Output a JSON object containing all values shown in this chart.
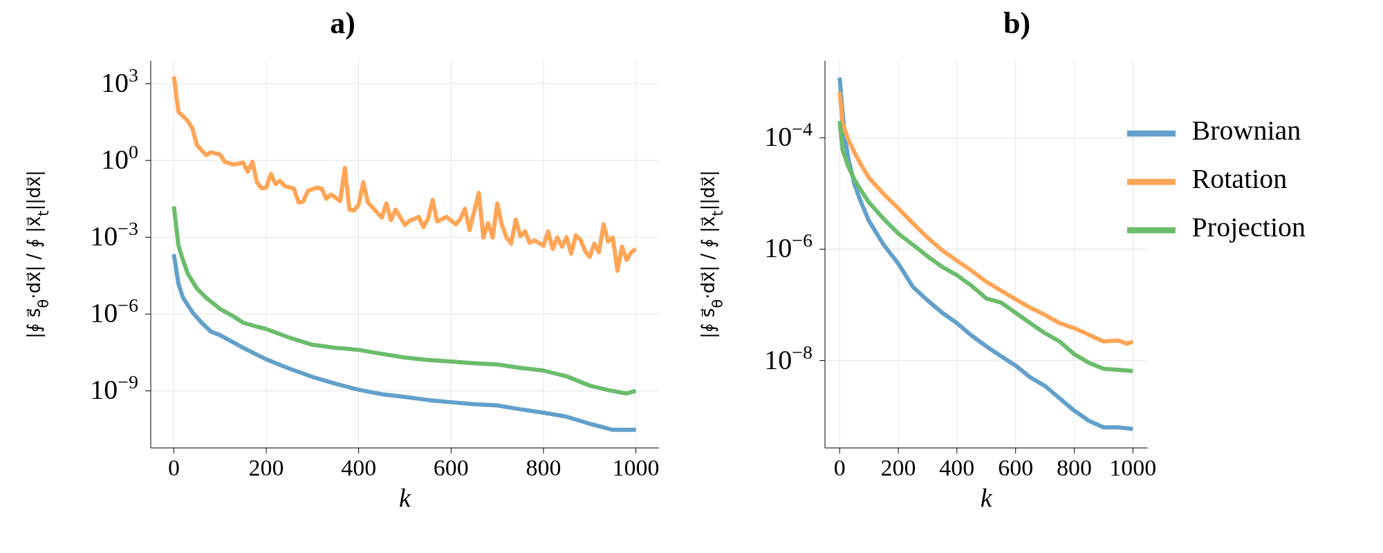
{
  "chart_data": [
    {
      "type": "line",
      "title": "a)",
      "xlabel": "k",
      "ylabel": "|∮ s⃗$_{θ}$·dx⃗| / ∮ |x⃗$_{t}$||dx⃗|",
      "log": "y",
      "grid": true,
      "xlim": [
        -50,
        1050
      ],
      "xticks": [
        0,
        200,
        400,
        600,
        800,
        1000
      ],
      "ylim": [
        5.9e-12,
        7800
      ],
      "yticks": [
        {
          "value": 1e-09,
          "label": "10$^{−9}$"
        },
        {
          "value": 1e-06,
          "label": "10$^{−6}$"
        },
        {
          "value": 0.001,
          "label": "10$^{−3}$"
        },
        {
          "value": 1,
          "label": "10$^{0}$"
        },
        {
          "value": 1000,
          "label": "10$^{3}$"
        }
      ],
      "series": [
        {
          "color": "#62a0cb",
          "x": [
            0,
            10,
            20,
            40,
            60,
            80,
            100,
            150,
            200,
            250,
            300,
            350,
            400,
            450,
            500,
            550,
            600,
            650,
            700,
            750,
            800,
            850,
            900,
            950,
            1000
          ],
          "values": [
            0.00022,
            1.5e-05,
            4.3e-06,
            1.2e-06,
            4.6e-07,
            2.1e-07,
            1.5e-07,
            4.8e-08,
            1.7e-08,
            7.4e-09,
            3.5e-09,
            1.9e-09,
            1.1e-09,
            7.4e-10,
            5.8e-10,
            4.4e-10,
            3.6e-10,
            3e-10,
            2.7e-10,
            1.9e-10,
            1.4e-10,
            9.8e-11,
            5.2e-11,
            3e-11,
            3e-11
          ]
        },
        {
          "color": "#ffa556",
          "x": [
            0,
            10,
            30,
            40,
            50,
            60,
            70,
            80,
            100,
            110,
            130,
            150,
            160,
            170,
            180,
            190,
            200,
            210,
            220,
            230,
            240,
            260,
            270,
            280,
            290,
            310,
            320,
            330,
            340,
            360,
            370,
            380,
            390,
            400,
            410,
            420,
            450,
            460,
            470,
            480,
            500,
            510,
            530,
            540,
            550,
            560,
            570,
            590,
            610,
            620,
            630,
            640,
            660,
            670,
            680,
            690,
            700,
            710,
            720,
            730,
            740,
            750,
            760,
            770,
            780,
            800,
            810,
            820,
            830,
            840,
            850,
            860,
            870,
            880,
            890,
            900,
            910,
            920,
            930,
            940,
            950,
            960,
            970,
            980,
            990,
            1000
          ],
          "values": [
            1900,
            79,
            35,
            18,
            4.0,
            2.5,
            1.6,
            2.1,
            1.7,
            0.89,
            0.69,
            0.83,
            0.36,
            0.89,
            0.14,
            0.081,
            0.087,
            0.3,
            0.12,
            0.16,
            0.1,
            0.079,
            0.023,
            0.025,
            0.065,
            0.087,
            0.079,
            0.032,
            0.047,
            0.026,
            0.52,
            0.012,
            0.011,
            0.019,
            0.14,
            0.023,
            0.0059,
            0.021,
            0.0047,
            0.012,
            0.003,
            0.0044,
            0.0063,
            0.0025,
            0.0052,
            0.029,
            0.0041,
            0.0063,
            0.0032,
            0.0052,
            0.013,
            0.0019,
            0.054,
            0.00098,
            0.0036,
            0.00098,
            0.021,
            0.003,
            0.00098,
            0.00056,
            0.0049,
            0.0011,
            0.0017,
            0.0006,
            0.00076,
            0.00047,
            0.0017,
            0.00035,
            0.001,
            0.00043,
            0.001,
            0.00023,
            0.0012,
            0.00081,
            0.00029,
            0.00017,
            0.00056,
            0.00026,
            0.0032,
            0.00068,
            0.00098,
            4.9e-05,
            0.00043,
            0.00013,
            0.00026,
            0.00035
          ]
        },
        {
          "color": "#6bbc6b",
          "x": [
            0,
            10,
            20,
            30,
            50,
            70,
            100,
            130,
            150,
            180,
            200,
            250,
            300,
            350,
            400,
            450,
            500,
            550,
            600,
            650,
            700,
            750,
            800,
            850,
            900,
            940,
            980,
            1000
          ],
          "values": [
            0.016,
            0.00047,
            0.000126,
            3.8e-05,
            1e-05,
            4.3e-06,
            1.6e-06,
            7.9e-07,
            4.6e-07,
            3.2e-07,
            2.6e-07,
            1.2e-07,
            6.3e-08,
            4.8e-08,
            4e-08,
            2.8e-08,
            2e-08,
            1.6e-08,
            1.4e-08,
            1.2e-08,
            1.07e-08,
            7.9e-09,
            6.2e-09,
            3.7e-09,
            1.6e-09,
            1.07e-09,
            7.9e-10,
            1e-09
          ]
        }
      ]
    },
    {
      "type": "line",
      "title": "b)",
      "xlabel": "k",
      "ylabel": "|∮ s⃗$_{θ}$·dx⃗| / ∮ |x⃗$_{t}$||dx⃗|",
      "log": "y",
      "grid": true,
      "legend": "top right",
      "xlim": [
        -50,
        1050
      ],
      "xticks": [
        0,
        200,
        400,
        600,
        800,
        1000
      ],
      "ylim": [
        2.7e-10,
        0.0024
      ],
      "yticks": [
        {
          "value": 1e-08,
          "label": "10$^{−8}$"
        },
        {
          "value": 1e-06,
          "label": "10$^{−6}$"
        },
        {
          "value": 0.0001,
          "label": "10$^{−4}$"
        }
      ],
      "series": [
        {
          "name": "Brownian",
          "color": "#62a0cb",
          "x": [
            0,
            10,
            20,
            30,
            50,
            70,
            100,
            150,
            200,
            250,
            300,
            350,
            400,
            450,
            500,
            550,
            600,
            650,
            700,
            750,
            800,
            850,
            900,
            950,
            1000
          ],
          "values": [
            0.0012,
            0.00028,
            8.5e-05,
            4.1e-05,
            1.5e-05,
            7.6e-06,
            3.2e-06,
            1.2e-06,
            5.5e-07,
            2.1e-07,
            1.2e-07,
            7.2e-08,
            4.7e-08,
            2.8e-08,
            1.8e-08,
            1.2e-08,
            8.1e-09,
            5e-09,
            3.5e-09,
            2.1e-09,
            1.26e-09,
            8.3e-10,
            6.3e-10,
            6.3e-10,
            5.9e-10
          ]
        },
        {
          "name": "Rotation",
          "color": "#ffa556",
          "x": [
            0,
            10,
            30,
            50,
            70,
            100,
            150,
            200,
            250,
            300,
            350,
            400,
            450,
            500,
            550,
            600,
            650,
            700,
            750,
            800,
            850,
            900,
            950,
            980,
            1000
          ],
          "values": [
            0.00066,
            0.00018,
            9.1e-05,
            5.5e-05,
            3.5e-05,
            1.9e-05,
            9.8e-06,
            5.4e-06,
            2.9e-06,
            1.6e-06,
            9.5e-07,
            6.2e-07,
            4.1e-07,
            2.6e-07,
            1.8e-07,
            1.26e-07,
            8.9e-08,
            6.6e-08,
            4.7e-08,
            3.8e-08,
            2.9e-08,
            2.2e-08,
            2.3e-08,
            2e-08,
            2.2e-08
          ]
        },
        {
          "name": "Projection",
          "color": "#6bbc6b",
          "x": [
            0,
            10,
            30,
            50,
            70,
            100,
            150,
            200,
            250,
            300,
            350,
            400,
            450,
            500,
            550,
            600,
            650,
            700,
            750,
            800,
            850,
            900,
            950,
            1000
          ],
          "values": [
            0.0002,
            6e-05,
            3e-05,
            1.8e-05,
            1.2e-05,
            6.9e-06,
            3.5e-06,
            1.9e-06,
            1.2e-06,
            7.4e-07,
            4.8e-07,
            3.4e-07,
            2.2e-07,
            1.3e-07,
            1.1e-07,
            7.2e-08,
            4.7e-08,
            3.1e-08,
            2.2e-08,
            1.3e-08,
            9.1e-09,
            7.1e-09,
            6.8e-09,
            6.5e-09
          ]
        }
      ]
    }
  ]
}
